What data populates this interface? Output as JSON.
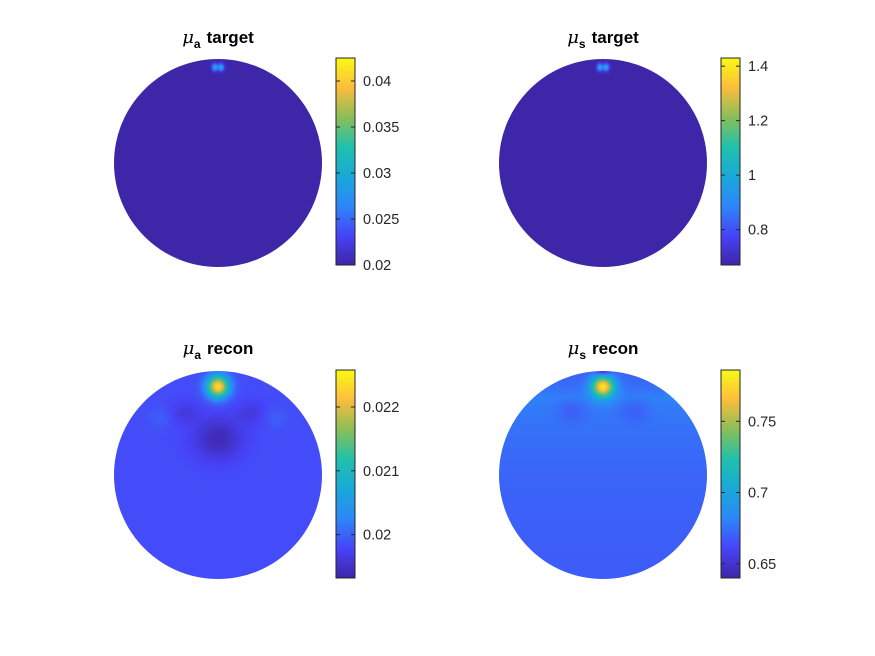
{
  "colormap": [
    "#3e26a8",
    "#4743f8",
    "#2d87f8",
    "#19a9d8",
    "#20c1ab",
    "#8bbe58",
    "#fcbd3c",
    "#f9f914"
  ],
  "chart_data": [
    {
      "type": "heatmap",
      "title": {
        "symbol": "μ",
        "subscript": "a",
        "text": "target"
      },
      "colorbar": {
        "range": [
          0.02,
          0.0425
        ],
        "ticks": [
          0.02,
          0.025,
          0.03,
          0.035,
          0.04
        ],
        "tick_labels": [
          "0.02",
          "0.025",
          "0.03",
          "0.035",
          "0.04"
        ]
      },
      "field": {
        "background": 0.02,
        "blobs": [
          {
            "cx": -0.03,
            "cy": -0.92,
            "sx": 0.02,
            "sy": 0.025,
            "amp": 0.01
          },
          {
            "cx": 0.03,
            "cy": -0.92,
            "sx": 0.02,
            "sy": 0.025,
            "amp": 0.01
          }
        ]
      }
    },
    {
      "type": "heatmap",
      "title": {
        "symbol": "μ",
        "subscript": "s",
        "text": "target"
      },
      "colorbar": {
        "range": [
          0.67,
          1.43
        ],
        "ticks": [
          0.8,
          1,
          1.2,
          1.4
        ],
        "tick_labels": [
          "0.8",
          "1",
          "1.2",
          "1.4"
        ]
      },
      "field": {
        "background": 0.67,
        "blobs": [
          {
            "cx": -0.03,
            "cy": -0.92,
            "sx": 0.02,
            "sy": 0.025,
            "amp": 0.33
          },
          {
            "cx": 0.03,
            "cy": -0.92,
            "sx": 0.02,
            "sy": 0.025,
            "amp": 0.33
          }
        ]
      }
    },
    {
      "type": "heatmap",
      "title": {
        "symbol": "μ",
        "subscript": "a",
        "text": "recon"
      },
      "colorbar": {
        "range": [
          0.01932,
          0.02258
        ],
        "ticks": [
          0.02,
          0.021,
          0.022
        ],
        "tick_labels": [
          "0.02",
          "0.021",
          "0.022"
        ]
      },
      "field": {
        "background": 0.01985,
        "blobs": [
          {
            "cx": 0.0,
            "cy": -0.85,
            "sx": 0.075,
            "sy": 0.075,
            "amp": 0.0025
          },
          {
            "cx": 0.0,
            "cy": -0.35,
            "sx": 0.16,
            "sy": 0.14,
            "amp": -0.00045
          },
          {
            "cx": -0.32,
            "cy": -0.6,
            "sx": 0.1,
            "sy": 0.08,
            "amp": -0.0002
          },
          {
            "cx": 0.32,
            "cy": -0.6,
            "sx": 0.1,
            "sy": 0.08,
            "amp": -0.0002
          },
          {
            "cx": -0.55,
            "cy": -0.55,
            "sx": 0.08,
            "sy": 0.07,
            "amp": 0.00012
          },
          {
            "cx": 0.55,
            "cy": -0.55,
            "sx": 0.08,
            "sy": 0.07,
            "amp": 0.00012
          }
        ]
      }
    },
    {
      "type": "heatmap",
      "title": {
        "symbol": "μ",
        "subscript": "s",
        "text": "recon"
      },
      "colorbar": {
        "range": [
          0.64,
          0.786
        ],
        "ticks": [
          0.65,
          0.7,
          0.75
        ],
        "tick_labels": [
          "0.65",
          "0.7",
          "0.75"
        ]
      },
      "field": {
        "background": 0.668,
        "gradient": {
          "amp": 0.012,
          "y0": -0.75,
          "decay": 0.6
        },
        "blobs": [
          {
            "cx": 0.0,
            "cy": -0.85,
            "sx": 0.075,
            "sy": 0.07,
            "amp": 0.105
          },
          {
            "cx": 0.0,
            "cy": -1.02,
            "sx": 0.05,
            "sy": 0.035,
            "amp": -0.04
          },
          {
            "cx": -0.3,
            "cy": -0.62,
            "sx": 0.1,
            "sy": 0.08,
            "amp": -0.008
          },
          {
            "cx": 0.3,
            "cy": -0.62,
            "sx": 0.1,
            "sy": 0.08,
            "amp": -0.008
          }
        ]
      }
    }
  ]
}
